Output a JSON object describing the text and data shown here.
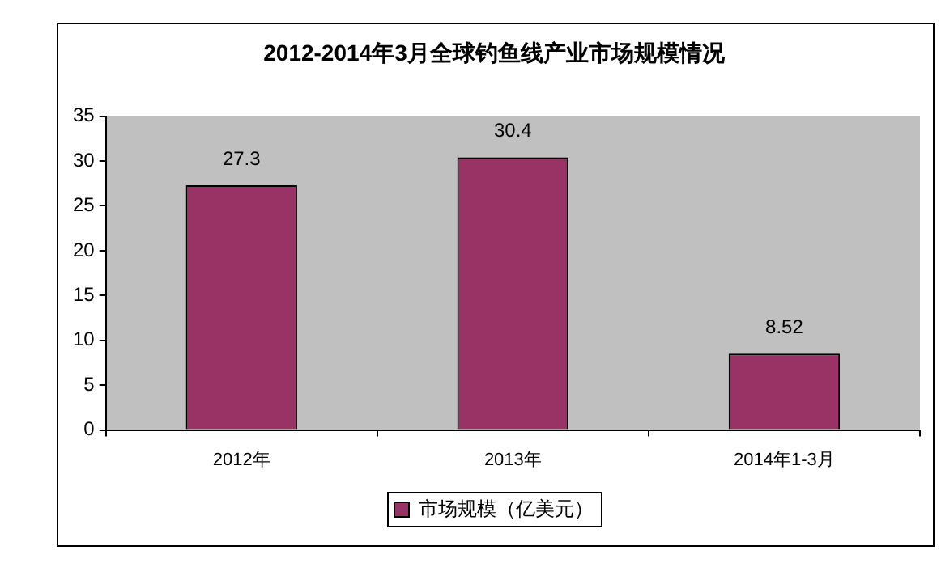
{
  "chart_data": {
    "type": "bar",
    "title": "2012-2014年3月全球钓鱼线产业市场规模情况",
    "categories": [
      "2012年",
      "2013年",
      "2014年1-3月"
    ],
    "series": [
      {
        "name": "市场规模（亿美元）",
        "color": "#993366",
        "values": [
          27.3,
          30.4,
          8.52
        ]
      }
    ],
    "ylim": [
      0,
      35
    ],
    "yticks": [
      0,
      5,
      10,
      15,
      20,
      25,
      30,
      35
    ],
    "grid": false,
    "legend": "bottom",
    "data_labels": true
  }
}
